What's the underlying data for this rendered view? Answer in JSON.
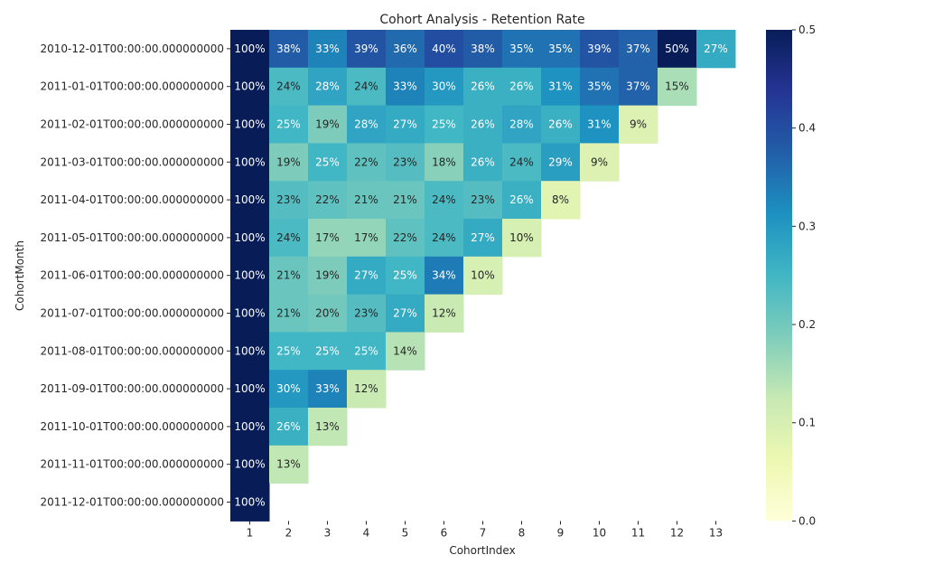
{
  "chart_data": {
    "type": "heatmap",
    "title": "Cohort Analysis - Retention Rate",
    "xlabel": "CohortIndex",
    "ylabel": "CohortMonth",
    "x": [
      "1",
      "2",
      "3",
      "4",
      "5",
      "6",
      "7",
      "8",
      "9",
      "10",
      "11",
      "12",
      "13"
    ],
    "y": [
      "2010-12-01T00:00:00.000000000",
      "2011-01-01T00:00:00.000000000",
      "2011-02-01T00:00:00.000000000",
      "2011-03-01T00:00:00.000000000",
      "2011-04-01T00:00:00.000000000",
      "2011-05-01T00:00:00.000000000",
      "2011-06-01T00:00:00.000000000",
      "2011-07-01T00:00:00.000000000",
      "2011-08-01T00:00:00.000000000",
      "2011-09-01T00:00:00.000000000",
      "2011-10-01T00:00:00.000000000",
      "2011-11-01T00:00:00.000000000",
      "2011-12-01T00:00:00.000000000"
    ],
    "values": [
      [
        1.0,
        0.38,
        0.33,
        0.39,
        0.36,
        0.4,
        0.38,
        0.35,
        0.35,
        0.39,
        0.37,
        0.5,
        0.27
      ],
      [
        1.0,
        0.24,
        0.28,
        0.24,
        0.33,
        0.3,
        0.26,
        0.26,
        0.31,
        0.35,
        0.37,
        0.15,
        null
      ],
      [
        1.0,
        0.25,
        0.19,
        0.28,
        0.27,
        0.25,
        0.26,
        0.28,
        0.26,
        0.31,
        0.09,
        null,
        null
      ],
      [
        1.0,
        0.19,
        0.25,
        0.22,
        0.23,
        0.18,
        0.26,
        0.24,
        0.29,
        0.09,
        null,
        null,
        null
      ],
      [
        1.0,
        0.23,
        0.22,
        0.21,
        0.21,
        0.24,
        0.23,
        0.26,
        0.08,
        null,
        null,
        null,
        null
      ],
      [
        1.0,
        0.24,
        0.17,
        0.17,
        0.22,
        0.24,
        0.27,
        0.1,
        null,
        null,
        null,
        null,
        null
      ],
      [
        1.0,
        0.21,
        0.19,
        0.27,
        0.25,
        0.34,
        0.1,
        null,
        null,
        null,
        null,
        null,
        null
      ],
      [
        1.0,
        0.21,
        0.2,
        0.23,
        0.27,
        0.12,
        null,
        null,
        null,
        null,
        null,
        null,
        null
      ],
      [
        1.0,
        0.25,
        0.25,
        0.25,
        0.14,
        null,
        null,
        null,
        null,
        null,
        null,
        null,
        null
      ],
      [
        1.0,
        0.3,
        0.33,
        0.12,
        null,
        null,
        null,
        null,
        null,
        null,
        null,
        null,
        null
      ],
      [
        1.0,
        0.26,
        0.13,
        null,
        null,
        null,
        null,
        null,
        null,
        null,
        null,
        null,
        null
      ],
      [
        1.0,
        0.13,
        null,
        null,
        null,
        null,
        null,
        null,
        null,
        null,
        null,
        null,
        null
      ],
      [
        1.0,
        null,
        null,
        null,
        null,
        null,
        null,
        null,
        null,
        null,
        null,
        null,
        null
      ]
    ],
    "cell_labels": [
      [
        "100%",
        "38%",
        "33%",
        "39%",
        "36%",
        "40%",
        "38%",
        "35%",
        "35%",
        "39%",
        "37%",
        "50%",
        "27%"
      ],
      [
        "100%",
        "24%",
        "28%",
        "24%",
        "33%",
        "30%",
        "26%",
        "26%",
        "31%",
        "35%",
        "37%",
        "15%",
        null
      ],
      [
        "100%",
        "25%",
        "19%",
        "28%",
        "27%",
        "25%",
        "26%",
        "28%",
        "26%",
        "31%",
        "9%",
        null,
        null
      ],
      [
        "100%",
        "19%",
        "25%",
        "22%",
        "23%",
        "18%",
        "26%",
        "24%",
        "29%",
        "9%",
        null,
        null,
        null
      ],
      [
        "100%",
        "23%",
        "22%",
        "21%",
        "21%",
        "24%",
        "23%",
        "26%",
        "8%",
        null,
        null,
        null,
        null
      ],
      [
        "100%",
        "24%",
        "17%",
        "17%",
        "22%",
        "24%",
        "27%",
        "10%",
        null,
        null,
        null,
        null,
        null
      ],
      [
        "100%",
        "21%",
        "19%",
        "27%",
        "25%",
        "34%",
        "10%",
        null,
        null,
        null,
        null,
        null,
        null
      ],
      [
        "100%",
        "21%",
        "20%",
        "23%",
        "27%",
        "12%",
        null,
        null,
        null,
        null,
        null,
        null,
        null
      ],
      [
        "100%",
        "25%",
        "25%",
        "25%",
        "14%",
        null,
        null,
        null,
        null,
        null,
        null,
        null,
        null
      ],
      [
        "100%",
        "30%",
        "33%",
        "12%",
        null,
        null,
        null,
        null,
        null,
        null,
        null,
        null,
        null
      ],
      [
        "100%",
        "26%",
        "13%",
        null,
        null,
        null,
        null,
        null,
        null,
        null,
        null,
        null,
        null
      ],
      [
        "100%",
        "13%",
        null,
        null,
        null,
        null,
        null,
        null,
        null,
        null,
        null,
        null,
        null
      ],
      [
        "100%",
        null,
        null,
        null,
        null,
        null,
        null,
        null,
        null,
        null,
        null,
        null,
        null
      ]
    ],
    "colorbar": {
      "vmin": 0.0,
      "vmax": 0.5,
      "ticks": [
        0.0,
        0.1,
        0.2,
        0.3,
        0.4,
        0.5
      ],
      "tick_labels": [
        "0.0",
        "0.1",
        "0.2",
        "0.3",
        "0.4",
        "0.5"
      ],
      "colormap": "YlGnBu",
      "stops": [
        "#ffffd9",
        "#edf8b1",
        "#c7e9b4",
        "#7fcdbb",
        "#41b6c4",
        "#1d91c0",
        "#225ea8",
        "#253494",
        "#081d58"
      ]
    },
    "grid": false
  }
}
